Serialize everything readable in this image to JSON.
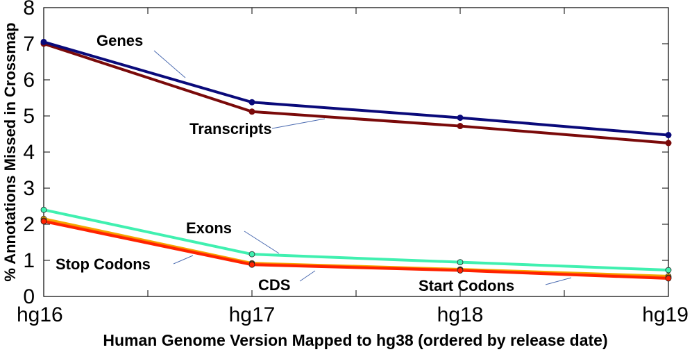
{
  "chart_data": {
    "type": "line",
    "title": "",
    "xlabel": "Human Genome Version Mapped to hg38 (ordered by release date)",
    "ylabel": "% Annotations Missed in Crossmap",
    "categories": [
      "hg16",
      "hg17",
      "hg18",
      "hg19"
    ],
    "ylim": [
      0,
      8
    ],
    "yticks": [
      "0",
      "1",
      "2",
      "3",
      "4",
      "5",
      "6",
      "7",
      "8"
    ],
    "grid": false,
    "series": [
      {
        "name": "Genes",
        "values": [
          7.05,
          5.38,
          4.95,
          4.47
        ],
        "color": "#0a0a7a"
      },
      {
        "name": "Transcripts",
        "values": [
          7.0,
          5.12,
          4.72,
          4.25
        ],
        "color": "#7a0a0a"
      },
      {
        "name": "Exons",
        "values": [
          2.4,
          1.17,
          0.95,
          0.73
        ],
        "color": "#40f0b0"
      },
      {
        "name": "Stop Codons",
        "values": [
          2.15,
          0.92,
          0.75,
          0.56
        ],
        "color": "#f5a800"
      },
      {
        "name": "CDS",
        "values": [
          2.08,
          0.88,
          0.72,
          0.5
        ],
        "color": "#ff2200"
      },
      {
        "name": "Start Codons",
        "values": [
          2.1,
          0.9,
          0.73,
          0.52
        ],
        "color": "#ff7700"
      }
    ]
  }
}
